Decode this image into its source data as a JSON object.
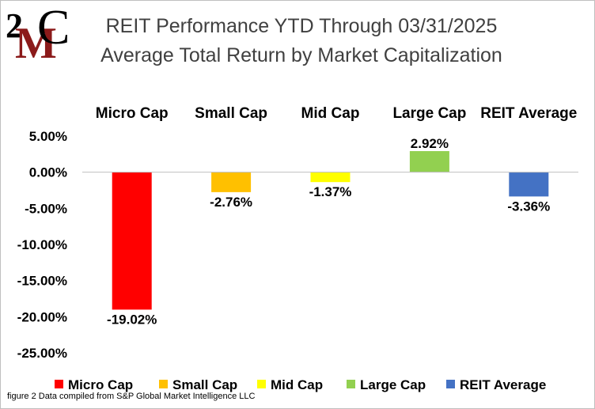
{
  "logo": {
    "text_digit": "2",
    "text_m": "M",
    "text_c": "C",
    "colors": {
      "m": "#8b1a1a",
      "c": "#000000"
    }
  },
  "footnote": "figure 2 Data compiled from S&P Global Market Intelligence LLC",
  "chart_data": {
    "type": "bar",
    "title": "REIT Performance YTD Through 03/31/2025",
    "subtitle": "Average Total Return by Market Capitalization",
    "xlabel": "",
    "ylabel": "",
    "categories": [
      "Micro Cap",
      "Small Cap",
      "Mid Cap",
      "Large Cap",
      "REIT Average"
    ],
    "values": [
      -19.02,
      -2.76,
      -1.37,
      2.92,
      -3.36
    ],
    "data_labels": [
      "-19.02%",
      "-2.76%",
      "-1.37%",
      "2.92%",
      "-3.36%"
    ],
    "colors": [
      "#ff0000",
      "#ffc000",
      "#ffff00",
      "#92d050",
      "#4472c4"
    ],
    "ylim": [
      -25,
      5
    ],
    "yticks": [
      5,
      0,
      -5,
      -10,
      -15,
      -20,
      -25
    ],
    "ytick_labels": [
      "5.00%",
      "0.00%",
      "-5.00%",
      "-10.00%",
      "-15.00%",
      "-20.00%",
      "-25.00%"
    ],
    "category_label_position": "top",
    "grid": false,
    "legend": {
      "position": "bottom",
      "entries": [
        "Micro Cap",
        "Small Cap",
        "Mid Cap",
        "Large Cap",
        "REIT Average"
      ]
    }
  }
}
